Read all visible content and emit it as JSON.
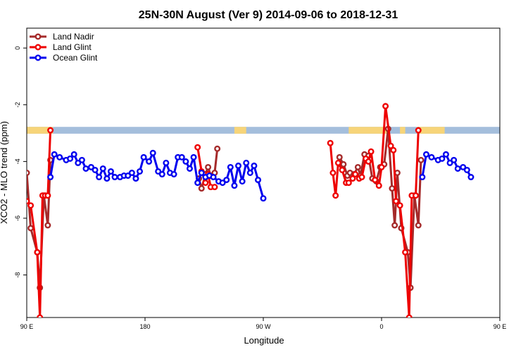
{
  "chart_data": {
    "type": "line",
    "title": "25N-30N August (Ver 9)   2014-09-06 to 2018-12-31",
    "xlabel": "Longitude",
    "ylabel": "XCO2 - MLO trend (ppm)",
    "xlim": [
      90,
      450
    ],
    "ylim": [
      -9.5,
      0.7
    ],
    "x_ticks": [
      {
        "value": 90,
        "label": "90 E"
      },
      {
        "value": 180,
        "label": "180"
      },
      {
        "value": 270,
        "label": "90 W"
      },
      {
        "value": 360,
        "label": "0"
      },
      {
        "value": 450,
        "label": "90 E"
      },
      {
        "value": 540,
        "label": "180"
      }
    ],
    "y_ticks": [
      {
        "value": 0,
        "label": "0"
      },
      {
        "value": -2,
        "label": "-2"
      },
      {
        "value": -4,
        "label": "-4"
      },
      {
        "value": -6,
        "label": "-6"
      },
      {
        "value": -8,
        "label": "-8"
      }
    ],
    "grid": false,
    "legend_position": "top-left",
    "map_strip": {
      "y_top": -2.78,
      "y_bottom": -3.02,
      "ocean_color": "#a4bedc",
      "land_color": "#f7d479"
    },
    "series": [
      {
        "name": "Land Nadir",
        "color": "#a52a2a",
        "points": [
          [
            90,
            -4.4
          ],
          [
            93,
            -6.35
          ],
          [
            98,
            -7.2
          ],
          [
            100,
            -8.45
          ],
          [
            103,
            -5.2
          ],
          [
            106,
            -6.25
          ],
          [
            108,
            -3.95
          ],
          [
            221,
            -4.6
          ],
          [
            223,
            -4.95
          ],
          [
            226,
            -4.45
          ],
          [
            228,
            -4.2
          ],
          [
            230,
            -4.5
          ],
          [
            233,
            -4.4
          ],
          [
            235,
            -3.55
          ],
          [
            328,
            -3.85
          ],
          [
            331,
            -4.1
          ],
          [
            334,
            -4.5
          ],
          [
            336,
            -4.4
          ],
          [
            339,
            -4.45
          ],
          [
            342,
            -4.2
          ],
          [
            344,
            -4.5
          ],
          [
            347,
            -3.75
          ],
          [
            350,
            -3.8
          ],
          [
            353,
            -4.6
          ],
          [
            356,
            -4.7
          ],
          [
            359,
            -4.2
          ],
          [
            362,
            -4.1
          ],
          [
            365,
            -2.85
          ],
          [
            368,
            -4.95
          ],
          [
            370,
            -6.25
          ],
          [
            372,
            -4.4
          ],
          [
            375,
            -6.35
          ],
          [
            380,
            -7.2
          ],
          [
            382,
            -8.45
          ],
          [
            385,
            -5.2
          ],
          [
            388,
            -6.25
          ],
          [
            390,
            -3.95
          ]
        ]
      },
      {
        "name": "Land Glint",
        "color": "#ee0000",
        "points": [
          [
            90,
            -5.4
          ],
          [
            93,
            -5.55
          ],
          [
            98,
            -7.2
          ],
          [
            100,
            -9.5
          ],
          [
            102,
            -5.2
          ],
          [
            104,
            -5.2
          ],
          [
            106,
            -5.2
          ],
          [
            108,
            -2.9
          ],
          [
            220,
            -3.5
          ],
          [
            223,
            -4.35
          ],
          [
            226,
            -4.75
          ],
          [
            228,
            -4.45
          ],
          [
            230,
            -4.9
          ],
          [
            233,
            -4.9
          ],
          [
            321,
            -3.35
          ],
          [
            323,
            -4.4
          ],
          [
            325,
            -5.2
          ],
          [
            327,
            -4.05
          ],
          [
            330,
            -4.3
          ],
          [
            333,
            -4.75
          ],
          [
            335,
            -4.75
          ],
          [
            338,
            -4.6
          ],
          [
            340,
            -4.45
          ],
          [
            343,
            -4.6
          ],
          [
            345,
            -4.55
          ],
          [
            348,
            -3.9
          ],
          [
            350,
            -4.0
          ],
          [
            352,
            -3.65
          ],
          [
            355,
            -4.65
          ],
          [
            358,
            -4.85
          ],
          [
            360,
            -4.2
          ],
          [
            363,
            -2.05
          ],
          [
            367,
            -3.45
          ],
          [
            369,
            -3.6
          ],
          [
            371,
            -5.4
          ],
          [
            374,
            -5.55
          ],
          [
            378,
            -7.2
          ],
          [
            381,
            -9.5
          ],
          [
            383,
            -5.2
          ],
          [
            386,
            -5.2
          ],
          [
            388,
            -2.9
          ]
        ]
      },
      {
        "name": "Ocean Glint",
        "color": "#0000ee",
        "points": [
          [
            108,
            -4.55
          ],
          [
            111,
            -3.75
          ],
          [
            115,
            -3.85
          ],
          [
            120,
            -3.95
          ],
          [
            123,
            -3.9
          ],
          [
            126,
            -3.75
          ],
          [
            129,
            -4.05
          ],
          [
            132,
            -3.95
          ],
          [
            135,
            -4.25
          ],
          [
            139,
            -4.2
          ],
          [
            142,
            -4.3
          ],
          [
            145,
            -4.55
          ],
          [
            148,
            -4.25
          ],
          [
            151,
            -4.6
          ],
          [
            154,
            -4.35
          ],
          [
            157,
            -4.55
          ],
          [
            161,
            -4.55
          ],
          [
            164,
            -4.5
          ],
          [
            167,
            -4.5
          ],
          [
            170,
            -4.4
          ],
          [
            173,
            -4.6
          ],
          [
            176,
            -4.35
          ],
          [
            179,
            -3.85
          ],
          [
            183,
            -4.0
          ],
          [
            186,
            -3.7
          ],
          [
            190,
            -4.35
          ],
          [
            193,
            -4.45
          ],
          [
            196,
            -4.05
          ],
          [
            199,
            -4.4
          ],
          [
            202,
            -4.45
          ],
          [
            205,
            -3.85
          ],
          [
            208,
            -3.85
          ],
          [
            211,
            -4.0
          ],
          [
            214,
            -4.25
          ],
          [
            217,
            -3.85
          ],
          [
            220,
            -4.75
          ],
          [
            223,
            -4.4
          ],
          [
            226,
            -4.55
          ],
          [
            229,
            -4.5
          ],
          [
            232,
            -4.55
          ],
          [
            236,
            -4.7
          ],
          [
            239,
            -4.75
          ],
          [
            242,
            -4.65
          ],
          [
            245,
            -4.2
          ],
          [
            248,
            -4.85
          ],
          [
            251,
            -4.15
          ],
          [
            254,
            -4.7
          ],
          [
            257,
            -4.05
          ],
          [
            260,
            -4.4
          ],
          [
            263,
            -4.15
          ],
          [
            266,
            -4.65
          ],
          [
            270,
            -5.3
          ],
          [
            391,
            -4.55
          ],
          [
            394,
            -3.75
          ],
          [
            398,
            -3.85
          ],
          [
            403,
            -3.95
          ],
          [
            406,
            -3.9
          ],
          [
            409,
            -3.75
          ],
          [
            412,
            -4.05
          ],
          [
            415,
            -3.95
          ],
          [
            418,
            -4.25
          ],
          [
            422,
            -4.2
          ],
          [
            425,
            -4.3
          ],
          [
            428,
            -4.55
          ]
        ]
      }
    ]
  }
}
